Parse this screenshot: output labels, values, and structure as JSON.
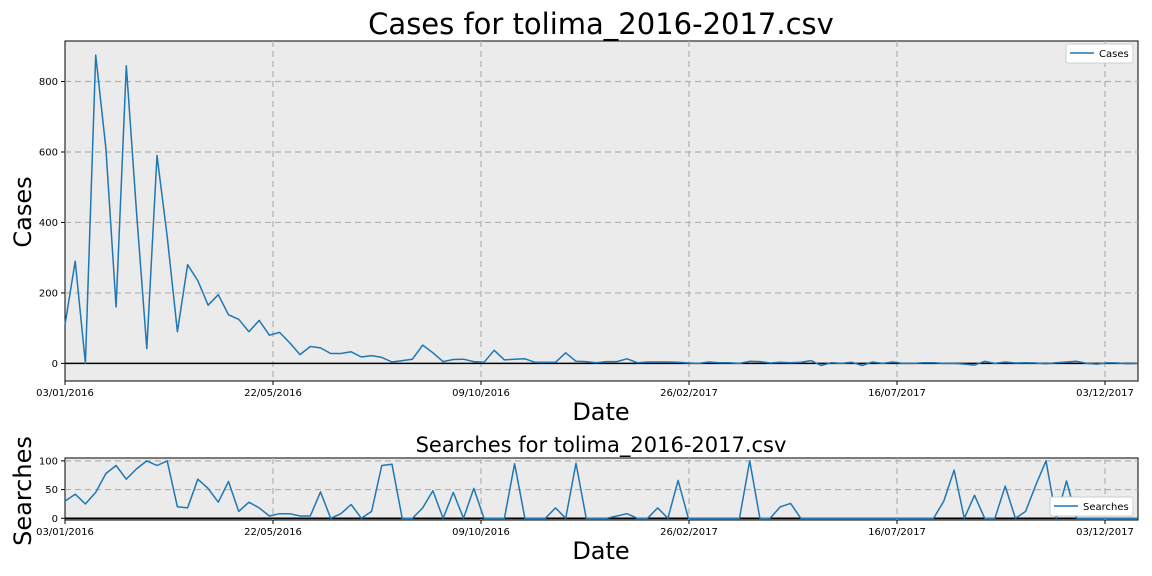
{
  "chart_data": [
    {
      "type": "line",
      "title": "Cases for tolima_2016-2017.csv",
      "xlabel": "Date",
      "ylabel": "Cases",
      "xtick_labels": [
        "03/01/2016",
        "22/05/2016",
        "09/10/2016",
        "26/02/2017",
        "16/07/2017",
        "03/12/2017"
      ],
      "yticks": [
        0,
        200,
        400,
        600,
        800
      ],
      "ylim": [
        -50,
        915
      ],
      "grid": true,
      "legend": "top-right",
      "series": [
        {
          "name": "Cases",
          "color": "#1f77b4",
          "values": [
            110,
            290,
            0,
            875,
            610,
            160,
            845,
            430,
            42,
            590,
            360,
            90,
            280,
            235,
            165,
            195,
            138,
            125,
            90,
            122,
            80,
            88,
            58,
            25,
            48,
            44,
            28,
            28,
            33,
            18,
            22,
            17,
            4,
            8,
            12,
            52,
            30,
            5,
            11,
            12,
            5,
            3,
            37,
            10,
            12,
            13,
            3,
            3,
            3,
            30,
            6,
            5,
            2,
            5,
            5,
            13,
            2,
            4,
            4,
            4,
            3,
            1,
            0,
            4,
            2,
            2,
            0,
            6,
            5,
            1,
            3,
            2,
            3,
            8,
            -6,
            2,
            0,
            3,
            -6,
            4,
            0,
            4,
            0,
            0,
            2,
            2,
            0,
            0,
            -2,
            -5,
            6,
            0,
            4,
            1,
            2,
            1,
            -1,
            2,
            4,
            6,
            0,
            -2,
            2,
            1,
            -1,
            0
          ]
        }
      ]
    },
    {
      "type": "line",
      "title": "Searches for tolima_2016-2017.csv",
      "xlabel": "Date",
      "ylabel": "Searches",
      "xtick_labels": [
        "03/01/2016",
        "22/05/2016",
        "09/10/2016",
        "26/02/2017",
        "16/07/2017",
        "03/12/2017"
      ],
      "yticks": [
        0,
        50,
        100
      ],
      "ylim": [
        -3,
        105
      ],
      "grid": true,
      "legend": "bottom-right",
      "series": [
        {
          "name": "Searches",
          "color": "#1f77b4",
          "values": [
            30,
            42,
            25,
            45,
            78,
            92,
            68,
            86,
            100,
            92,
            100,
            20,
            18,
            68,
            52,
            28,
            64,
            12,
            28,
            18,
            4,
            8,
            8,
            4,
            4,
            46,
            0,
            8,
            24,
            0,
            12,
            92,
            94,
            0,
            0,
            18,
            48,
            0,
            45,
            0,
            52,
            0,
            0,
            0,
            95,
            0,
            0,
            0,
            18,
            0,
            96,
            0,
            0,
            0,
            4,
            8,
            0,
            0,
            18,
            0,
            66,
            0,
            0,
            0,
            0,
            0,
            0,
            100,
            0,
            0,
            20,
            26,
            0,
            0,
            0,
            0,
            0,
            0,
            0,
            0,
            0,
            0,
            0,
            0,
            0,
            0,
            30,
            84,
            0,
            40,
            0,
            0,
            56,
            0,
            12,
            58,
            100,
            0,
            65,
            0,
            0,
            0,
            0,
            0,
            0,
            0
          ]
        }
      ]
    }
  ]
}
